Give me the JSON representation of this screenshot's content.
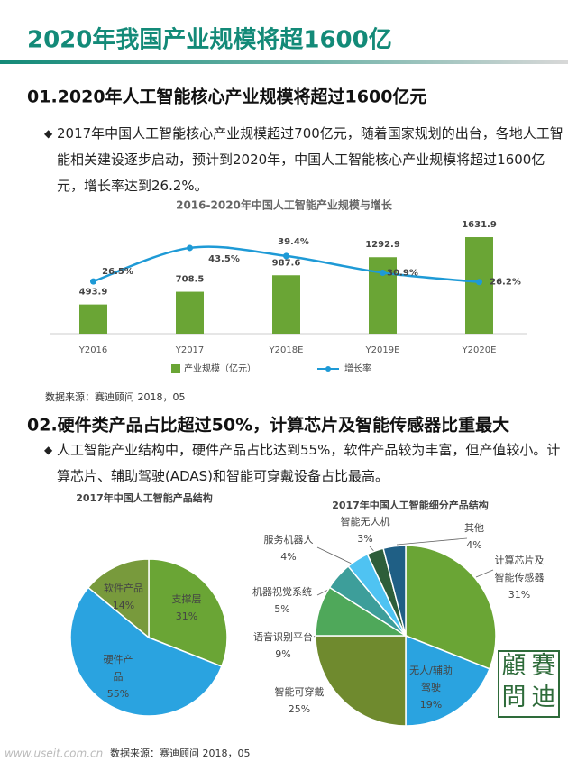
{
  "header": {
    "title": "2020年我国产业规模将超1600亿"
  },
  "sections": [
    {
      "heading": "01.2020年人工智能核心产业规模将超过1600亿元",
      "bullet": "2017年中国人工智能核心产业规模超过700亿元，随着国家规划的出台，各地人工智能相关建设逐步启动，预计到2020年，中国人工智能核心产业规模将超过1600亿元，增长率达到26.2%。",
      "source": "数据来源：赛迪顾问 2018，05"
    },
    {
      "heading": "02.硬件类产品占比超过50%，计算芯片及智能传感器比重最大",
      "bullet": "人工智能产业结构中，硬件产品占比达到55%，软件产品较为丰富，但产值较小。计算芯片、辅助驾驶(ADAS)和智能可穿戴设备占比最高。",
      "source": "数据来源：赛迪顾问 2018，05"
    }
  ],
  "chart_data": [
    {
      "type": "bar",
      "title": "2016-2020年中国人工智能产业规模与增长",
      "categories": [
        "Y2016",
        "Y2017",
        "Y2018E",
        "Y2019E",
        "Y2020E"
      ],
      "series": [
        {
          "name": "产业规模（亿元）",
          "type": "bar",
          "color": "#6aa535",
          "values": [
            493.9,
            708.5,
            987.6,
            1292.9,
            1631.9
          ]
        },
        {
          "name": "增长率",
          "type": "line",
          "color": "#1e9ad6",
          "axis": "y2",
          "values": [
            26.5,
            43.5,
            39.4,
            30.9,
            26.2
          ],
          "value_labels": [
            "26.5%",
            "43.5%",
            "39.4%",
            "30.9%",
            "26.2%"
          ]
        }
      ],
      "ylim": [
        0,
        1800
      ],
      "y2lim": [
        0,
        54
      ]
    },
    {
      "type": "pie",
      "title": "2017年中国人工智能产品结构",
      "categories": [
        "支撑层",
        "硬件产品",
        "软件产品"
      ],
      "values": [
        31,
        55,
        14
      ],
      "value_labels": [
        "31%",
        "55%",
        "14%"
      ],
      "colors": [
        "#6aa535",
        "#2aa3e0",
        "#789a3c"
      ]
    },
    {
      "type": "pie",
      "title": "2017年中国人工智能细分产品结构",
      "categories": [
        "计算芯片及智能传感器",
        "无人/辅助驾驶",
        "智能可穿戴",
        "语音识别平台",
        "机器视觉系统",
        "服务机器人",
        "智能无人机",
        "其他"
      ],
      "values": [
        31,
        19,
        25,
        9,
        5,
        4,
        3,
        4
      ],
      "value_labels": [
        "31%",
        "19%",
        "25%",
        "9%",
        "5%",
        "4%",
        "3%",
        "4%"
      ],
      "colors": [
        "#6aa535",
        "#2aa3e0",
        "#6f8a2e",
        "#4fa85a",
        "#3d9e9a",
        "#4fc3f2",
        "#2e5e3a",
        "#1f5f85"
      ]
    }
  ],
  "watermark": "www.useit.com.cn",
  "logo": [
    "賽",
    "迪",
    "顧",
    "問"
  ]
}
